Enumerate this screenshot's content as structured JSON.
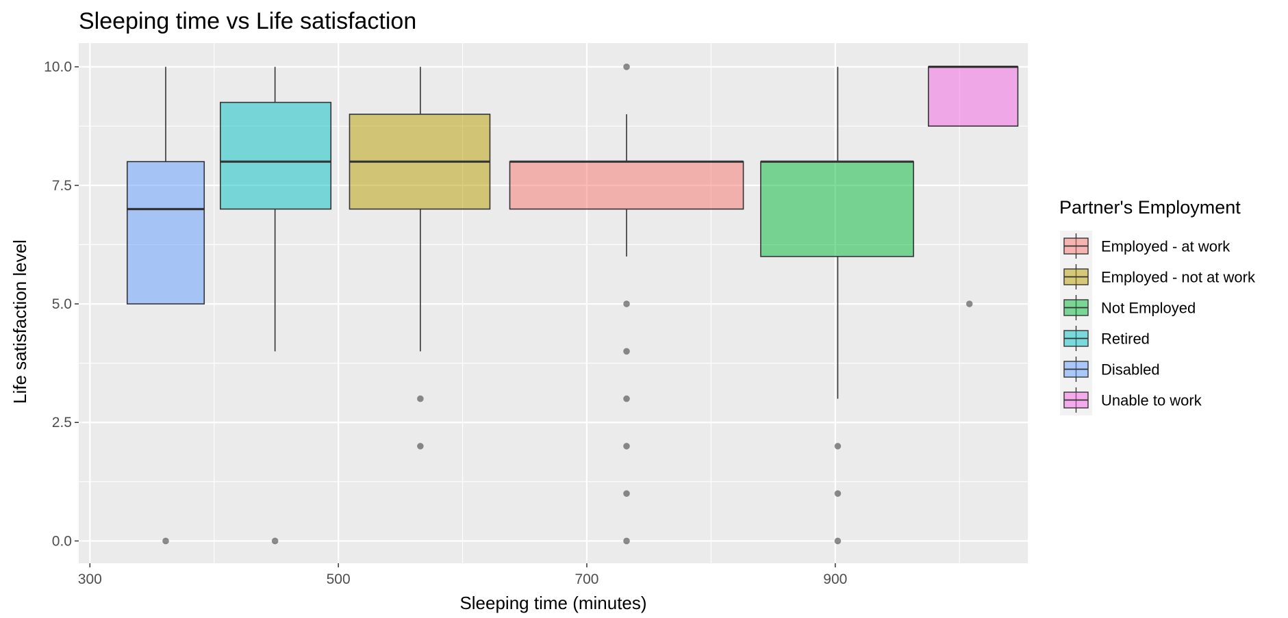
{
  "chart_data": {
    "type": "box",
    "title": "Sleeping time vs Life satisfaction",
    "xlabel": "Sleeping time (minutes)",
    "ylabel": "Life satisfaction level",
    "xlim": [
      291,
      1055
    ],
    "ylim": [
      -0.47,
      10.5
    ],
    "x_ticks": [
      300,
      500,
      700,
      900
    ],
    "y_ticks": [
      0.0,
      2.5,
      5.0,
      7.5,
      10.0
    ],
    "y_tick_labels": [
      "0.0",
      "2.5",
      "5.0",
      "7.5",
      "10.0"
    ],
    "grid": true,
    "legend": {
      "title": "Partner's Employment",
      "position": "right",
      "entries": [
        {
          "label": "Employed - at work",
          "color": "#F8766D"
        },
        {
          "label": "Employed - not at work",
          "color": "#B79F00"
        },
        {
          "label": "Not Employed",
          "color": "#00BA38"
        },
        {
          "label": "Retired",
          "color": "#00BFC4"
        },
        {
          "label": "Disabled",
          "color": "#619CFF"
        },
        {
          "label": "Unable to work",
          "color": "#F564E3"
        }
      ]
    },
    "series": [
      {
        "group": "Disabled",
        "x_center": 361,
        "x_span": [
          330,
          392
        ],
        "whisker_low": 5,
        "q1": 5,
        "median": 7,
        "q3": 8,
        "whisker_high": 10,
        "outliers": [
          0
        ]
      },
      {
        "group": "Retired",
        "x_center": 449,
        "x_span": [
          405,
          494
        ],
        "whisker_low": 4,
        "q1": 7,
        "median": 8,
        "q3": 9.25,
        "whisker_high": 10,
        "outliers": [
          0
        ]
      },
      {
        "group": "Employed - not at work",
        "x_center": 566,
        "x_span": [
          509,
          622
        ],
        "whisker_low": 4,
        "q1": 7,
        "median": 8,
        "q3": 9,
        "whisker_high": 10,
        "outliers": [
          3,
          2
        ]
      },
      {
        "group": "Employed - at work",
        "x_center": 732,
        "x_span": [
          638,
          826
        ],
        "whisker_low": 6,
        "q1": 7,
        "median": 8,
        "q3": 8,
        "whisker_high": 9,
        "outliers": [
          10,
          5,
          4,
          3,
          2,
          1,
          0
        ]
      },
      {
        "group": "Not Employed",
        "x_center": 902,
        "x_span": [
          840,
          963
        ],
        "whisker_low": 3,
        "q1": 6,
        "median": 8,
        "q3": 8,
        "whisker_high": 10,
        "outliers": [
          2,
          1,
          0
        ]
      },
      {
        "group": "Unable to work",
        "x_center": 1008,
        "x_span": [
          975,
          1047
        ],
        "whisker_low": 8.75,
        "q1": 8.75,
        "median": 10,
        "q3": 10,
        "whisker_high": 10,
        "outliers": [
          5
        ]
      }
    ]
  }
}
